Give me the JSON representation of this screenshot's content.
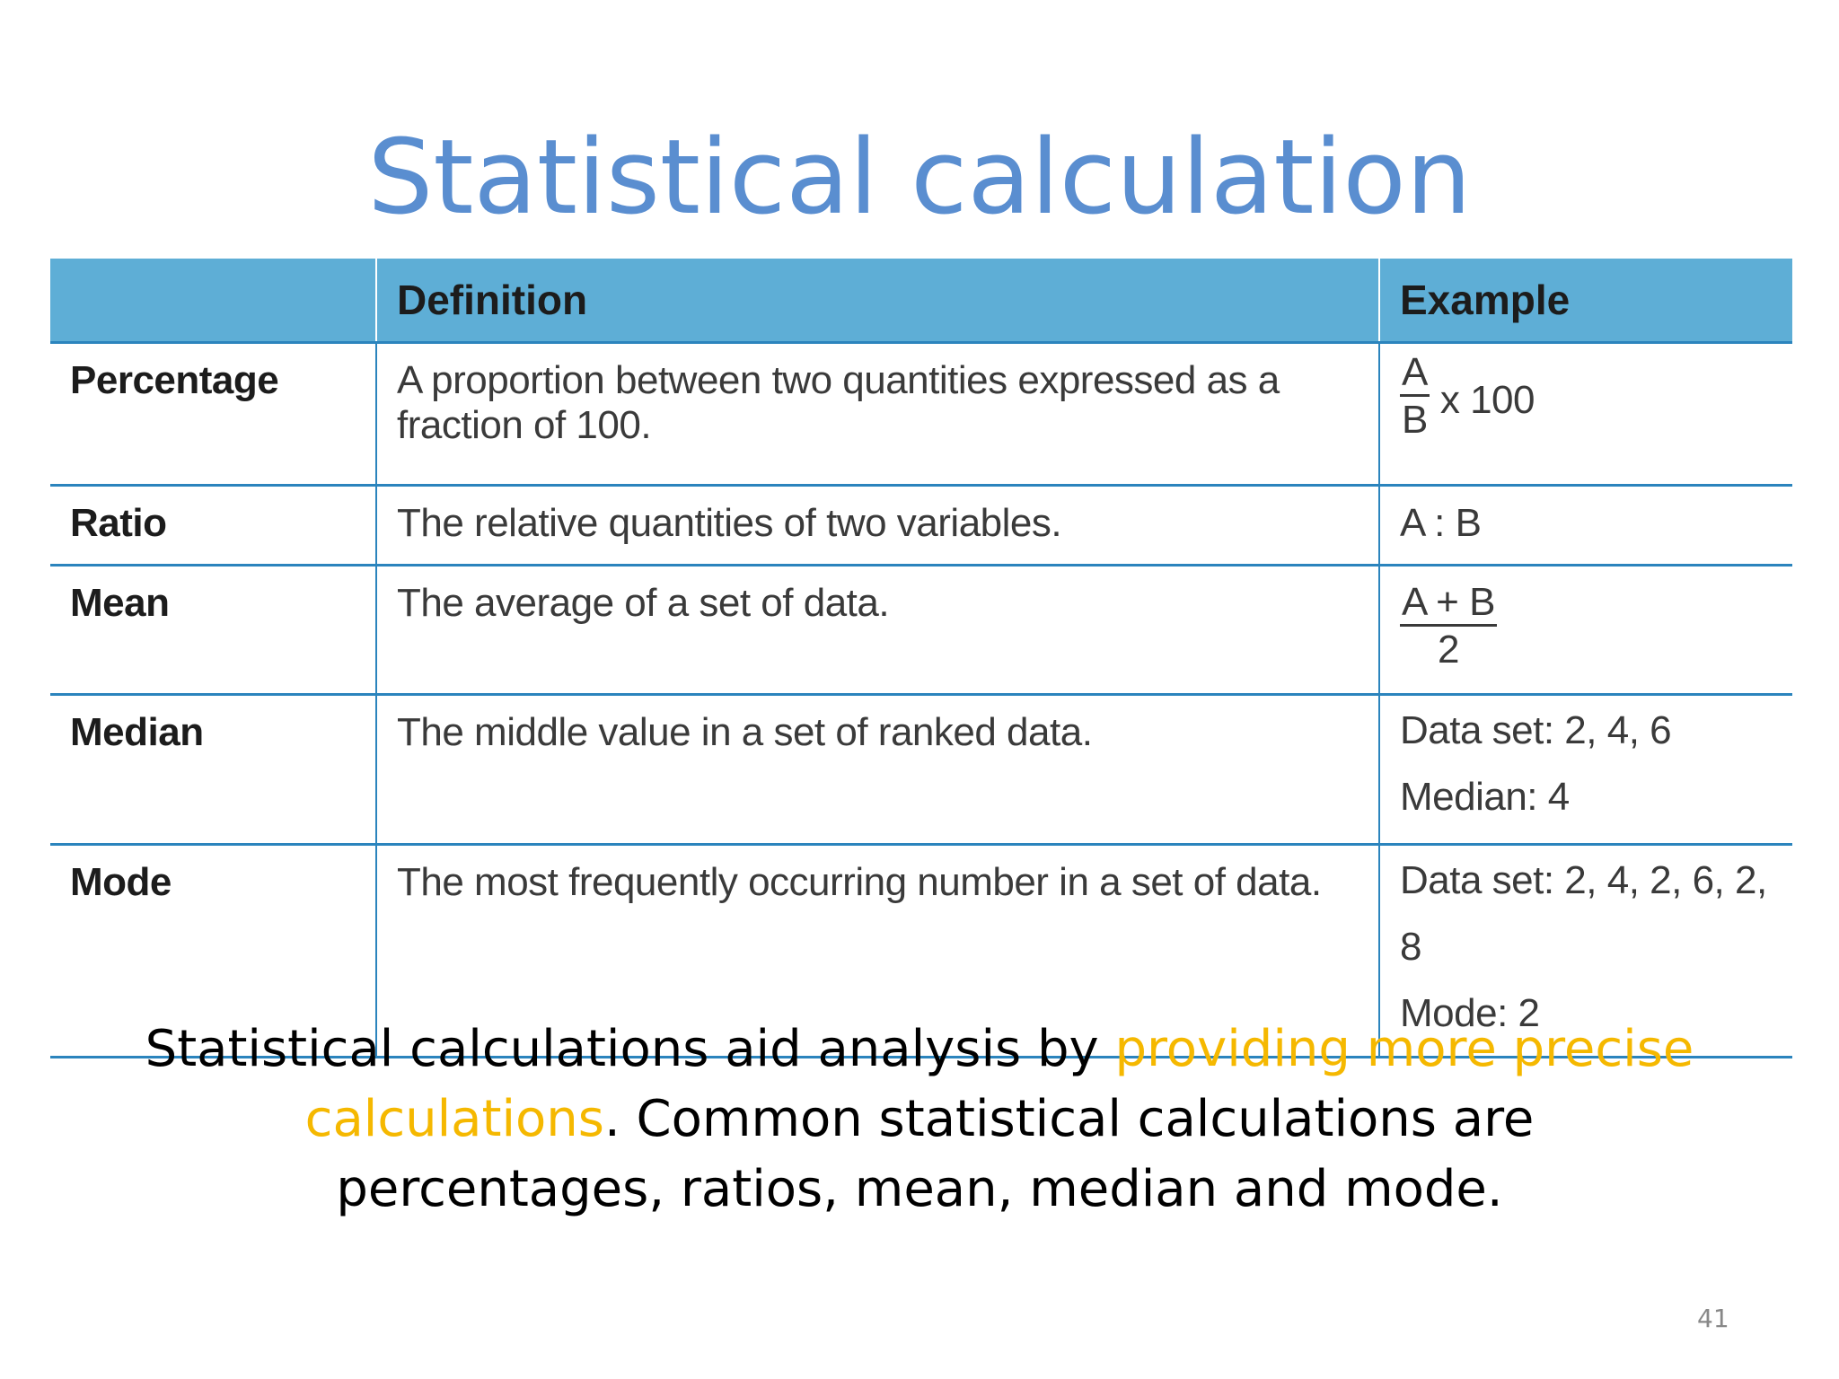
{
  "slide": {
    "title": "Statistical calculation",
    "page_number": "41"
  },
  "table": {
    "headers": [
      "",
      "Definition",
      "Example"
    ],
    "rows": [
      {
        "term": "Percentage",
        "definition": "A proportion between two quantities expressed as a fraction of 100.",
        "example": {
          "numerator": "A",
          "denominator": "B",
          "suffix": "x 100"
        }
      },
      {
        "term": "Ratio",
        "definition": "The relative quantities of two variables.",
        "example": {
          "text": "A : B"
        }
      },
      {
        "term": "Mean",
        "definition": "The average of a set of data.",
        "example": {
          "numerator": "A + B",
          "denominator": "2"
        }
      },
      {
        "term": "Median",
        "definition": "The middle value in a set of ranked data.",
        "example": {
          "line1": "Data set: 2, 4, 6",
          "line2": "Median: 4"
        }
      },
      {
        "term": "Mode",
        "definition": "The most frequently occurring number in a set of data.",
        "example": {
          "line1": "Data set: 2, 4, 2, 6, 2, 8",
          "line2": "Mode: 2"
        }
      }
    ]
  },
  "summary": {
    "part1": "Statistical calculations aid analysis by ",
    "highlight": "providing more precise calculations",
    "part2": ". Common statistical calculations are percentages, ratios, mean, median and mode."
  },
  "colors": {
    "title": "#5a8ed0",
    "header_bg": "#5eaed6",
    "row_border": "#2b84bd",
    "highlight": "#f5b800"
  }
}
